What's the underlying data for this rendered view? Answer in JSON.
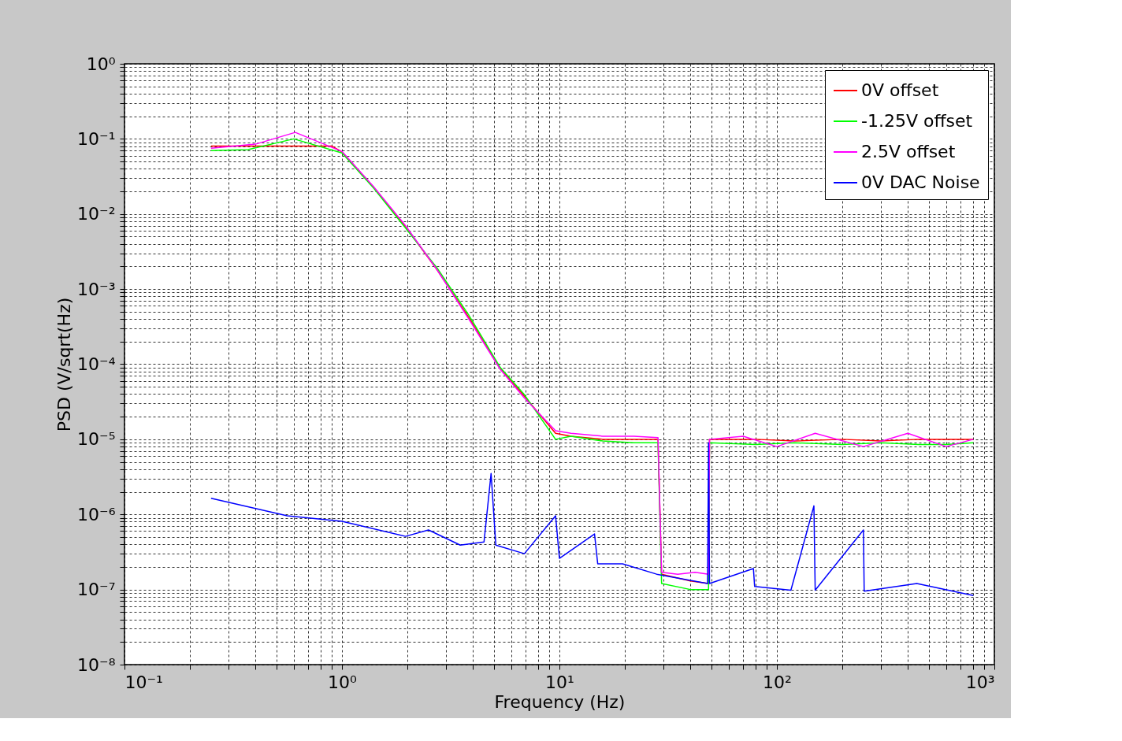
{
  "chart_data": {
    "type": "line",
    "xlabel": "Frequency (Hz)",
    "ylabel": "PSD (V/sqrt(Hz)",
    "log": "xy",
    "grid": true,
    "legend": "top right",
    "line_style": "solid",
    "xlim": [
      0.1,
      1000
    ],
    "ylim": [
      1e-08,
      1
    ],
    "xticks": [
      {
        "value": 0.1,
        "label": "10⁻¹"
      },
      {
        "value": 1,
        "label": "10⁰"
      },
      {
        "value": 10,
        "label": "10¹"
      },
      {
        "value": 100,
        "label": "10²"
      },
      {
        "value": 1000,
        "label": "10³"
      },
      {
        "value": 0.2,
        "label": null
      },
      {
        "value": 0.3,
        "label": null
      },
      {
        "value": 0.4,
        "label": null
      },
      {
        "value": 0.5,
        "label": null
      },
      {
        "value": 0.6,
        "label": null
      },
      {
        "value": 0.7,
        "label": null
      },
      {
        "value": 0.8,
        "label": null
      },
      {
        "value": 0.9,
        "label": null
      },
      {
        "value": 2,
        "label": null
      },
      {
        "value": 3,
        "label": null
      },
      {
        "value": 4,
        "label": null
      },
      {
        "value": 5,
        "label": null
      },
      {
        "value": 6,
        "label": null
      },
      {
        "value": 7,
        "label": null
      },
      {
        "value": 8,
        "label": null
      },
      {
        "value": 9,
        "label": null
      },
      {
        "value": 20,
        "label": null
      },
      {
        "value": 30,
        "label": null
      },
      {
        "value": 40,
        "label": null
      },
      {
        "value": 50,
        "label": null
      },
      {
        "value": 60,
        "label": null
      },
      {
        "value": 70,
        "label": null
      },
      {
        "value": 80,
        "label": null
      },
      {
        "value": 90,
        "label": null
      },
      {
        "value": 200,
        "label": null
      },
      {
        "value": 300,
        "label": null
      },
      {
        "value": 400,
        "label": null
      },
      {
        "value": 500,
        "label": null
      },
      {
        "value": 600,
        "label": null
      },
      {
        "value": 700,
        "label": null
      },
      {
        "value": 800,
        "label": null
      },
      {
        "value": 900,
        "label": null
      }
    ],
    "yticks": [
      {
        "value": 1e-08,
        "label": "10⁻⁸"
      },
      {
        "value": 1e-07,
        "label": "10⁻⁷"
      },
      {
        "value": 1e-06,
        "label": "10⁻⁶"
      },
      {
        "value": 1e-05,
        "label": "10⁻⁵"
      },
      {
        "value": 0.0001,
        "label": "10⁻⁴"
      },
      {
        "value": 0.001,
        "label": "10⁻³"
      },
      {
        "value": 0.01,
        "label": "10⁻²"
      },
      {
        "value": 0.1,
        "label": "10⁻¹"
      },
      {
        "value": 1,
        "label": "10⁰"
      },
      {
        "value": 2e-08,
        "label": null
      },
      {
        "value": 3e-08,
        "label": null
      },
      {
        "value": 4e-08,
        "label": null
      },
      {
        "value": 5e-08,
        "label": null
      },
      {
        "value": 6e-08,
        "label": null
      },
      {
        "value": 7e-08,
        "label": null
      },
      {
        "value": 8e-08,
        "label": null
      },
      {
        "value": 9e-08,
        "label": null
      },
      {
        "value": 2e-07,
        "label": null
      },
      {
        "value": 3e-07,
        "label": null
      },
      {
        "value": 4e-07,
        "label": null
      },
      {
        "value": 5e-07,
        "label": null
      },
      {
        "value": 6e-07,
        "label": null
      },
      {
        "value": 7e-07,
        "label": null
      },
      {
        "value": 8e-07,
        "label": null
      },
      {
        "value": 9e-07,
        "label": null
      },
      {
        "value": 2e-06,
        "label": null
      },
      {
        "value": 3e-06,
        "label": null
      },
      {
        "value": 4e-06,
        "label": null
      },
      {
        "value": 5e-06,
        "label": null
      },
      {
        "value": 6e-06,
        "label": null
      },
      {
        "value": 7e-06,
        "label": null
      },
      {
        "value": 8e-06,
        "label": null
      },
      {
        "value": 9e-06,
        "label": null
      },
      {
        "value": 2e-05,
        "label": null
      },
      {
        "value": 3e-05,
        "label": null
      },
      {
        "value": 4e-05,
        "label": null
      },
      {
        "value": 5e-05,
        "label": null
      },
      {
        "value": 6e-05,
        "label": null
      },
      {
        "value": 7e-05,
        "label": null
      },
      {
        "value": 8e-05,
        "label": null
      },
      {
        "value": 9e-05,
        "label": null
      },
      {
        "value": 0.0002,
        "label": null
      },
      {
        "value": 0.0003,
        "label": null
      },
      {
        "value": 0.0004,
        "label": null
      },
      {
        "value": 0.0005,
        "label": null
      },
      {
        "value": 0.0006,
        "label": null
      },
      {
        "value": 0.0007,
        "label": null
      },
      {
        "value": 0.0008,
        "label": null
      },
      {
        "value": 0.0009,
        "label": null
      },
      {
        "value": 0.002,
        "label": null
      },
      {
        "value": 0.003,
        "label": null
      },
      {
        "value": 0.004,
        "label": null
      },
      {
        "value": 0.005,
        "label": null
      },
      {
        "value": 0.006,
        "label": null
      },
      {
        "value": 0.007,
        "label": null
      },
      {
        "value": 0.008,
        "label": null
      },
      {
        "value": 0.009,
        "label": null
      },
      {
        "value": 0.02,
        "label": null
      },
      {
        "value": 0.03,
        "label": null
      },
      {
        "value": 0.04,
        "label": null
      },
      {
        "value": 0.05,
        "label": null
      },
      {
        "value": 0.06,
        "label": null
      },
      {
        "value": 0.07,
        "label": null
      },
      {
        "value": 0.08,
        "label": null
      },
      {
        "value": 0.09,
        "label": null
      },
      {
        "value": 0.2,
        "label": null
      },
      {
        "value": 0.3,
        "label": null
      },
      {
        "value": 0.4,
        "label": null
      },
      {
        "value": 0.5,
        "label": null
      },
      {
        "value": 0.6,
        "label": null
      },
      {
        "value": 0.7,
        "label": null
      },
      {
        "value": 0.8,
        "label": null
      },
      {
        "value": 0.9,
        "label": null
      }
    ],
    "series": [
      {
        "name": "0V offset",
        "color": "#ff0000",
        "x": [
          0.25,
          0.37,
          0.6,
          0.9,
          1.0,
          1.4,
          1.96,
          2.74,
          3.83,
          5.35,
          6.87,
          9.6,
          11.3,
          15.8,
          28.4,
          29.5,
          40,
          48.5,
          49,
          80,
          120,
          200,
          300,
          450,
          600,
          800
        ],
        "values": [
          0.08,
          0.08,
          0.08,
          0.08,
          0.067,
          0.0226,
          0.0068,
          0.0018,
          0.00042,
          8.7e-05,
          3.8e-05,
          1.2e-05,
          1.1e-05,
          1e-05,
          1e-05,
          1.6e-07,
          1.3e-07,
          1.2e-07,
          1e-05,
          1e-05,
          9.5e-06,
          1e-05,
          9.5e-06,
          1e-05,
          1e-05,
          1e-05
        ]
      },
      {
        "name": "-1.25V offset",
        "color": "#00ff00",
        "x": [
          0.25,
          0.37,
          0.6,
          1.0,
          1.4,
          1.96,
          2.74,
          3.83,
          5.35,
          6.87,
          9.6,
          11.3,
          15.8,
          22,
          28.4,
          29.5,
          40,
          48.5,
          49,
          80,
          120,
          200,
          300,
          450,
          600,
          800
        ],
        "values": [
          0.07,
          0.072,
          0.1,
          0.065,
          0.022,
          0.0065,
          0.0019,
          0.00045,
          9e-05,
          4e-05,
          1e-05,
          1.1e-05,
          9.5e-06,
          9e-06,
          9e-06,
          1.2e-07,
          1e-07,
          1e-07,
          9e-06,
          8.5e-06,
          9e-06,
          8.5e-06,
          9e-06,
          8.5e-06,
          8.5e-06,
          9e-06
        ]
      },
      {
        "name": "2.5V offset",
        "color": "#ff00ff",
        "x": [
          0.25,
          0.4,
          0.61,
          1.0,
          1.4,
          1.96,
          2.74,
          3.83,
          5.35,
          6.87,
          9.6,
          11.3,
          15.8,
          22,
          28.4,
          29.5,
          35,
          42,
          48.5,
          49,
          70,
          100,
          150,
          250,
          400,
          600,
          800
        ],
        "values": [
          0.075,
          0.085,
          0.122,
          0.068,
          0.023,
          0.007,
          0.0018,
          0.0004,
          8.5e-05,
          3.6e-05,
          1.3e-05,
          1.2e-05,
          1.1e-05,
          1.1e-05,
          1.05e-05,
          1.7e-07,
          1.6e-07,
          1.7e-07,
          1.6e-07,
          1e-05,
          1.1e-05,
          8e-06,
          1.2e-05,
          8e-06,
          1.2e-05,
          8e-06,
          1e-05
        ]
      },
      {
        "name": "0V DAC Noise",
        "color": "#0000ff",
        "x": [
          0.25,
          0.56,
          1.0,
          1.96,
          2.5,
          3.5,
          4.5,
          4.85,
          5.1,
          6.9,
          9.6,
          10,
          14.5,
          15,
          19.5,
          28,
          48,
          48.5,
          49,
          78,
          79,
          116,
          148,
          150,
          250,
          252,
          440,
          800
        ],
        "values": [
          1.64e-06,
          9.6e-07,
          8.1e-07,
          5.1e-07,
          6.2e-07,
          3.9e-07,
          4.3e-07,
          3.5e-06,
          3.9e-07,
          3e-07,
          9.6e-07,
          2.6e-07,
          5.5e-07,
          2.2e-07,
          2.2e-07,
          1.6e-07,
          1.2e-07,
          9e-06,
          1.2e-07,
          1.9e-07,
          1.1e-07,
          9.8e-08,
          1.3e-06,
          9.8e-08,
          6.2e-07,
          9.5e-08,
          1.2e-07,
          8.3e-08
        ]
      }
    ]
  }
}
